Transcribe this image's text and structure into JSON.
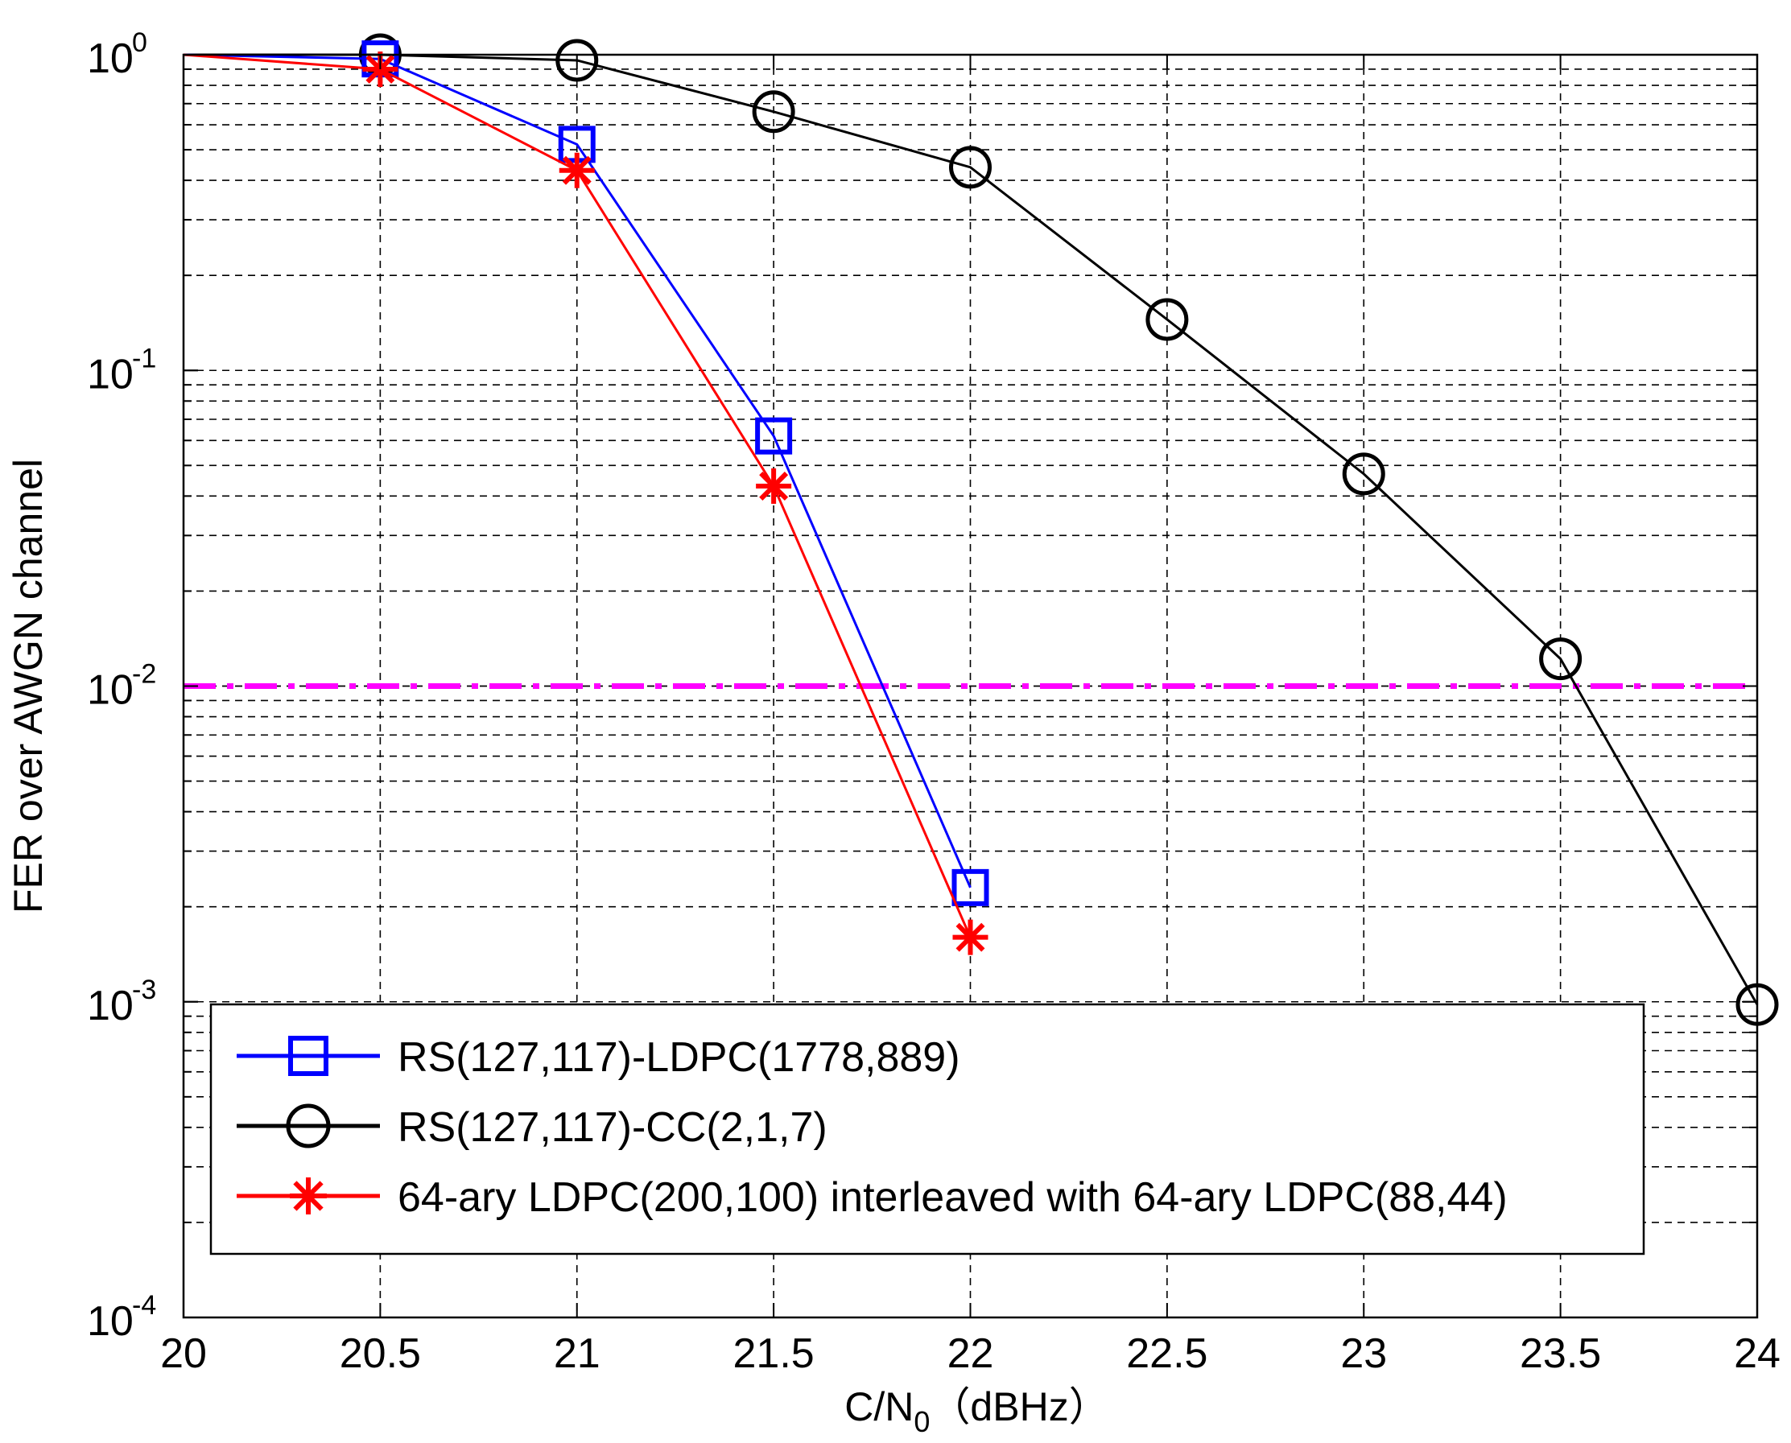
{
  "chart_data": {
    "type": "line",
    "xlabel": "C/N0（dBHz）",
    "xlabel_main": "C/N",
    "xlabel_sub": "0",
    "xlabel_unit": "（dBHz）",
    "ylabel": "FER over AWGN channel",
    "xlim": [
      20,
      24
    ],
    "ylim": [
      0.0001,
      1
    ],
    "yscale": "log",
    "grid": true,
    "x_ticks": [
      "20",
      "20.5",
      "21",
      "21.5",
      "22",
      "22.5",
      "23",
      "23.5",
      "24"
    ],
    "y_ticks": [
      {
        "base": "10",
        "exp": "0",
        "value": 1
      },
      {
        "base": "10",
        "exp": "-1",
        "value": 0.1
      },
      {
        "base": "10",
        "exp": "-2",
        "value": 0.01
      },
      {
        "base": "10",
        "exp": "-3",
        "value": 0.001
      },
      {
        "base": "10",
        "exp": "-4",
        "value": 0.0001
      }
    ],
    "legend_position": "bottom-left",
    "series": [
      {
        "name": "RS(127,117)-LDPC(1778,889)",
        "color": "#0000ff",
        "marker": "square",
        "x": [
          20,
          20.5,
          21,
          21.5,
          22
        ],
        "y": [
          1.0,
          0.97,
          0.52,
          0.062,
          0.0023
        ]
      },
      {
        "name": "RS(127,117)-CC(2,1,7)",
        "color": "#000000",
        "marker": "circle",
        "x": [
          20,
          20.5,
          21,
          21.5,
          22,
          22.5,
          23,
          23.5,
          24
        ],
        "y": [
          1.0,
          1.0,
          0.96,
          0.66,
          0.44,
          0.145,
          0.047,
          0.0122,
          0.00098
        ]
      },
      {
        "name": "64-ary LDPC(200,100) interleaved with 64-ary LDPC(88,44)",
        "color": "#ff0000",
        "marker": "star",
        "x": [
          20,
          20.5,
          21,
          21.5,
          22
        ],
        "y": [
          1.0,
          0.9,
          0.43,
          0.043,
          0.0016
        ]
      }
    ],
    "threshold_line": {
      "y": 0.01,
      "color": "#ff00ff",
      "style": "dash-dot"
    }
  }
}
